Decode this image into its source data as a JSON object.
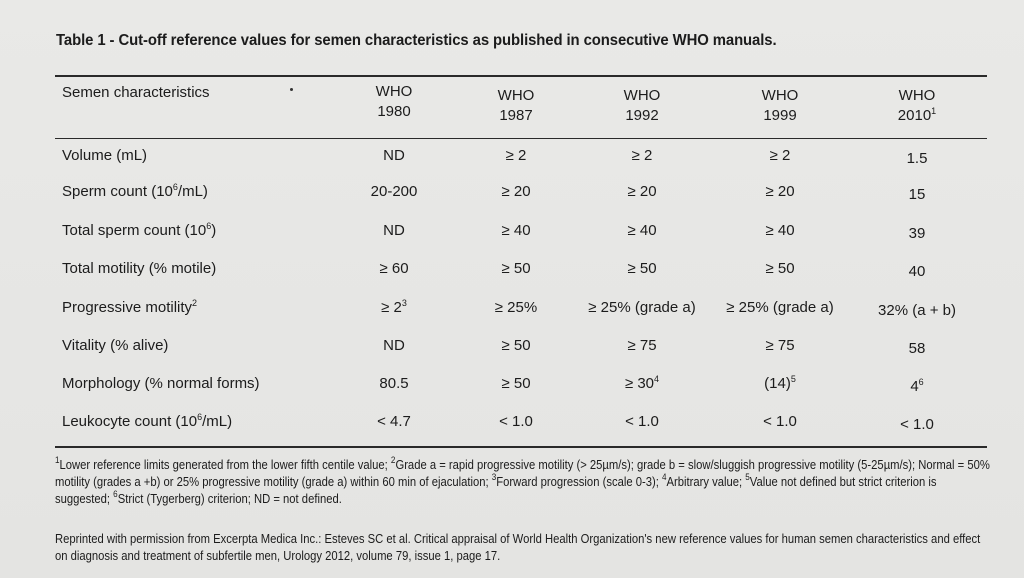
{
  "title": "Table 1 - Cut-off reference values for semen characteristics as published in consecutive WHO manuals.",
  "table": {
    "row_header": "Semen characteristics",
    "columns": [
      {
        "line1": "WHO",
        "line2": "1980",
        "sup": ""
      },
      {
        "line1": "WHO",
        "line2": "1987",
        "sup": ""
      },
      {
        "line1": "WHO",
        "line2": "1992",
        "sup": ""
      },
      {
        "line1": "WHO",
        "line2": "1999",
        "sup": ""
      },
      {
        "line1": "WHO",
        "line2": "2010",
        "sup": "1"
      }
    ],
    "rows": [
      {
        "label": "Volume (mL)",
        "label_sup": "",
        "label_tail": "",
        "values": [
          [
            "ND",
            ""
          ],
          [
            "≥ 2",
            ""
          ],
          [
            "≥ 2",
            ""
          ],
          [
            "≥ 2",
            ""
          ],
          [
            "1.5",
            ""
          ]
        ]
      },
      {
        "label": "Sperm count (10",
        "label_sup": "6",
        "label_tail": "/mL)",
        "values": [
          [
            "20-200",
            ""
          ],
          [
            "≥ 20",
            ""
          ],
          [
            "≥ 20",
            ""
          ],
          [
            "≥ 20",
            ""
          ],
          [
            "15",
            ""
          ]
        ]
      },
      {
        "label": "Total sperm count (10",
        "label_sup": "6",
        "label_tail": ")",
        "values": [
          [
            "ND",
            ""
          ],
          [
            "≥ 40",
            ""
          ],
          [
            "≥ 40",
            ""
          ],
          [
            "≥ 40",
            ""
          ],
          [
            "39",
            ""
          ]
        ]
      },
      {
        "label": "Total motility (% motile)",
        "label_sup": "",
        "label_tail": "",
        "values": [
          [
            "≥ 60",
            ""
          ],
          [
            "≥ 50",
            ""
          ],
          [
            "≥ 50",
            ""
          ],
          [
            "≥ 50",
            ""
          ],
          [
            "40",
            ""
          ]
        ]
      },
      {
        "label": "Progressive motility",
        "label_sup": "2",
        "label_tail": "",
        "values": [
          [
            "≥ 2",
            "3"
          ],
          [
            "≥ 25%",
            ""
          ],
          [
            "≥ 25% (grade a)",
            ""
          ],
          [
            "≥ 25% (grade a)",
            ""
          ],
          [
            "32% (a + b)",
            ""
          ]
        ]
      },
      {
        "label": "Vitality (% alive)",
        "label_sup": "",
        "label_tail": "",
        "values": [
          [
            "ND",
            ""
          ],
          [
            "≥ 50",
            ""
          ],
          [
            "≥ 75",
            ""
          ],
          [
            "≥ 75",
            ""
          ],
          [
            "58",
            ""
          ]
        ]
      },
      {
        "label": "Morphology (% normal forms)",
        "label_sup": "",
        "label_tail": "",
        "values": [
          [
            "80.5",
            ""
          ],
          [
            "≥ 50",
            ""
          ],
          [
            "≥ 30",
            "4"
          ],
          [
            "(14)",
            "5"
          ],
          [
            "4",
            "6"
          ]
        ]
      },
      {
        "label": "Leukocyte count (10",
        "label_sup": "6",
        "label_tail": "/mL)",
        "values": [
          [
            "< 4.7",
            ""
          ],
          [
            "< 1.0",
            ""
          ],
          [
            "< 1.0",
            ""
          ],
          [
            "< 1.0",
            ""
          ],
          [
            "< 1.0",
            ""
          ]
        ]
      }
    ]
  },
  "footnotes": [
    {
      "sup": "1",
      "text": "Lower reference limits generated from the lower fifth centile value; "
    },
    {
      "sup": "2",
      "text": "Grade a = rapid progressive motility (> 25µm/s); grade b = slow/sluggish progressive motility (5-25µm/s); Normal = 50% motility (grades a +b) or 25% progressive motility (grade a) within 60 min of ejaculation; "
    },
    {
      "sup": "3",
      "text": "Forward progression (scale 0-3); "
    },
    {
      "sup": "4",
      "text": "Arbitrary value; "
    },
    {
      "sup": "5",
      "text": "Value not defined but strict criterion is suggested; "
    },
    {
      "sup": "6",
      "text": "Strict (Tygerberg) criterion; ND = not defined."
    }
  ],
  "credit": "Reprinted with permission from Excerpta Medica Inc.: Esteves SC et al. Critical appraisal of World Health Organization's new reference values for human semen characteristics and effect on diagnosis and treatment of subfertile men, Urology 2012, volume 79, issue 1, page 17."
}
